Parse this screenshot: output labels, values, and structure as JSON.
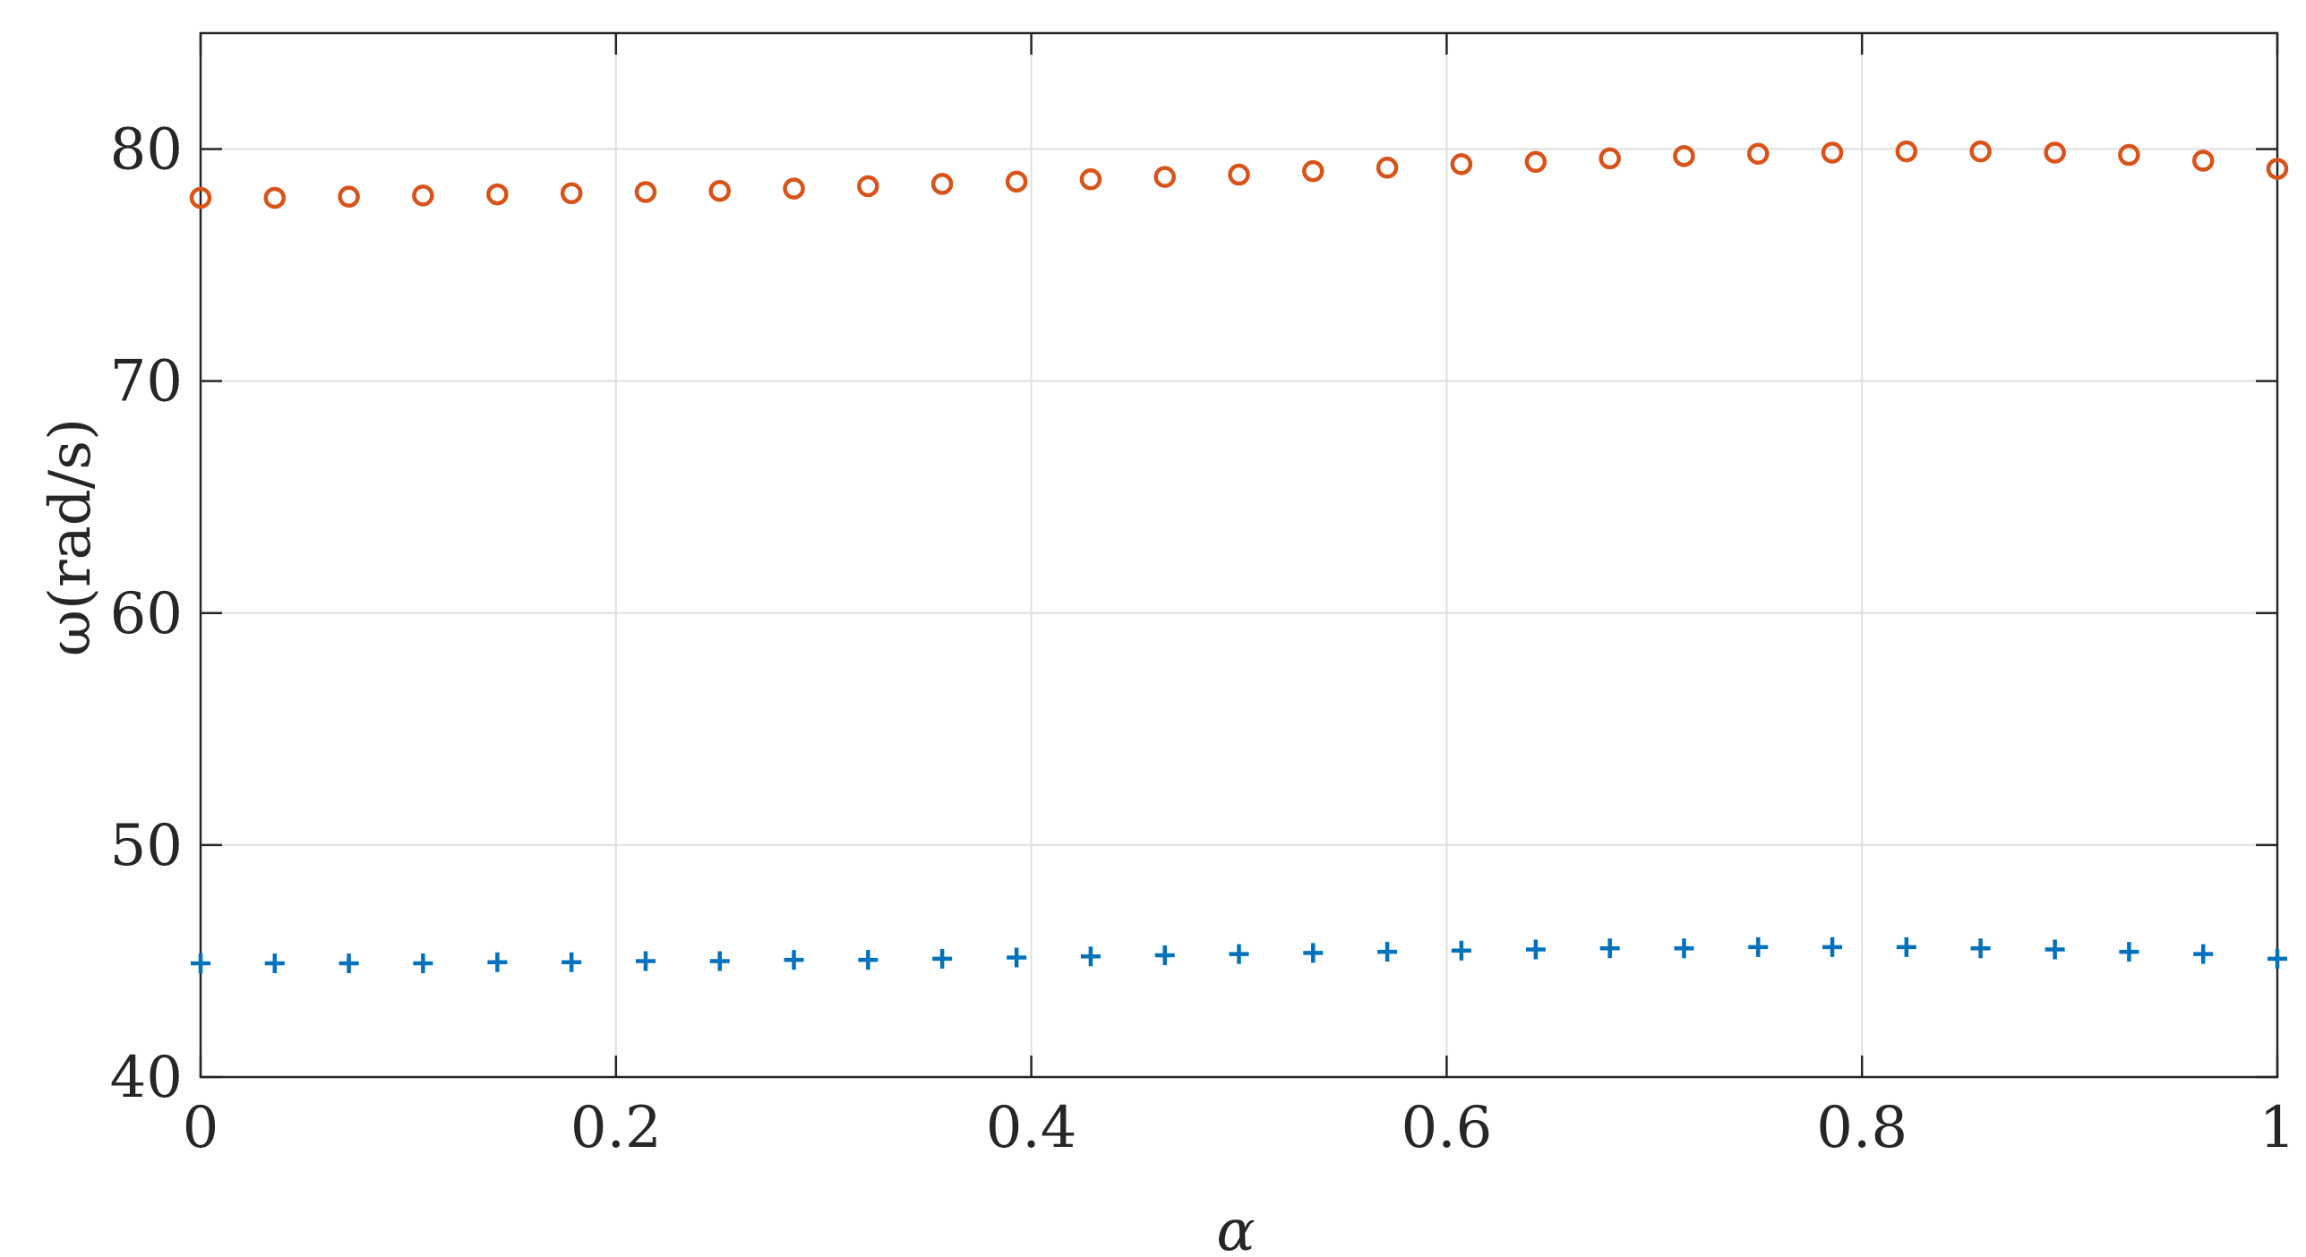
{
  "chart_data": {
    "type": "scatter",
    "xlabel": "α",
    "ylabel": "ω(rad/s)",
    "xlim": [
      0,
      1
    ],
    "ylim": [
      40,
      85
    ],
    "xticks": [
      "0",
      "0.2",
      "0.4",
      "0.6",
      "0.8",
      "1"
    ],
    "xtick_values": [
      0,
      0.2,
      0.4,
      0.6,
      0.8,
      1
    ],
    "yticks": [
      "40",
      "50",
      "60",
      "70",
      "80"
    ],
    "ytick_values": [
      40,
      50,
      60,
      70,
      80
    ],
    "grid": true,
    "x": [
      0,
      0.0357,
      0.0714,
      0.1071,
      0.1429,
      0.1786,
      0.2143,
      0.25,
      0.2857,
      0.3214,
      0.3571,
      0.3929,
      0.4286,
      0.4643,
      0.5,
      0.5357,
      0.5714,
      0.6071,
      0.6429,
      0.6786,
      0.7143,
      0.75,
      0.7857,
      0.8214,
      0.8571,
      0.8929,
      0.9286,
      0.9643,
      1
    ],
    "series": [
      {
        "marker": "plus",
        "color": "#0072BD",
        "values": [
          44.9,
          44.9,
          44.9,
          44.9,
          44.95,
          44.95,
          45.0,
          45.0,
          45.05,
          45.05,
          45.1,
          45.15,
          45.2,
          45.25,
          45.3,
          45.35,
          45.4,
          45.45,
          45.5,
          45.55,
          45.55,
          45.6,
          45.6,
          45.6,
          45.55,
          45.5,
          45.4,
          45.3,
          45.1
        ]
      },
      {
        "marker": "circle",
        "color": "#D95319",
        "values": [
          77.9,
          77.9,
          77.95,
          78.0,
          78.05,
          78.1,
          78.15,
          78.2,
          78.3,
          78.4,
          78.5,
          78.6,
          78.7,
          78.8,
          78.9,
          79.05,
          79.2,
          79.35,
          79.45,
          79.6,
          79.7,
          79.8,
          79.85,
          79.9,
          79.9,
          79.85,
          79.75,
          79.5,
          79.15
        ]
      }
    ]
  }
}
